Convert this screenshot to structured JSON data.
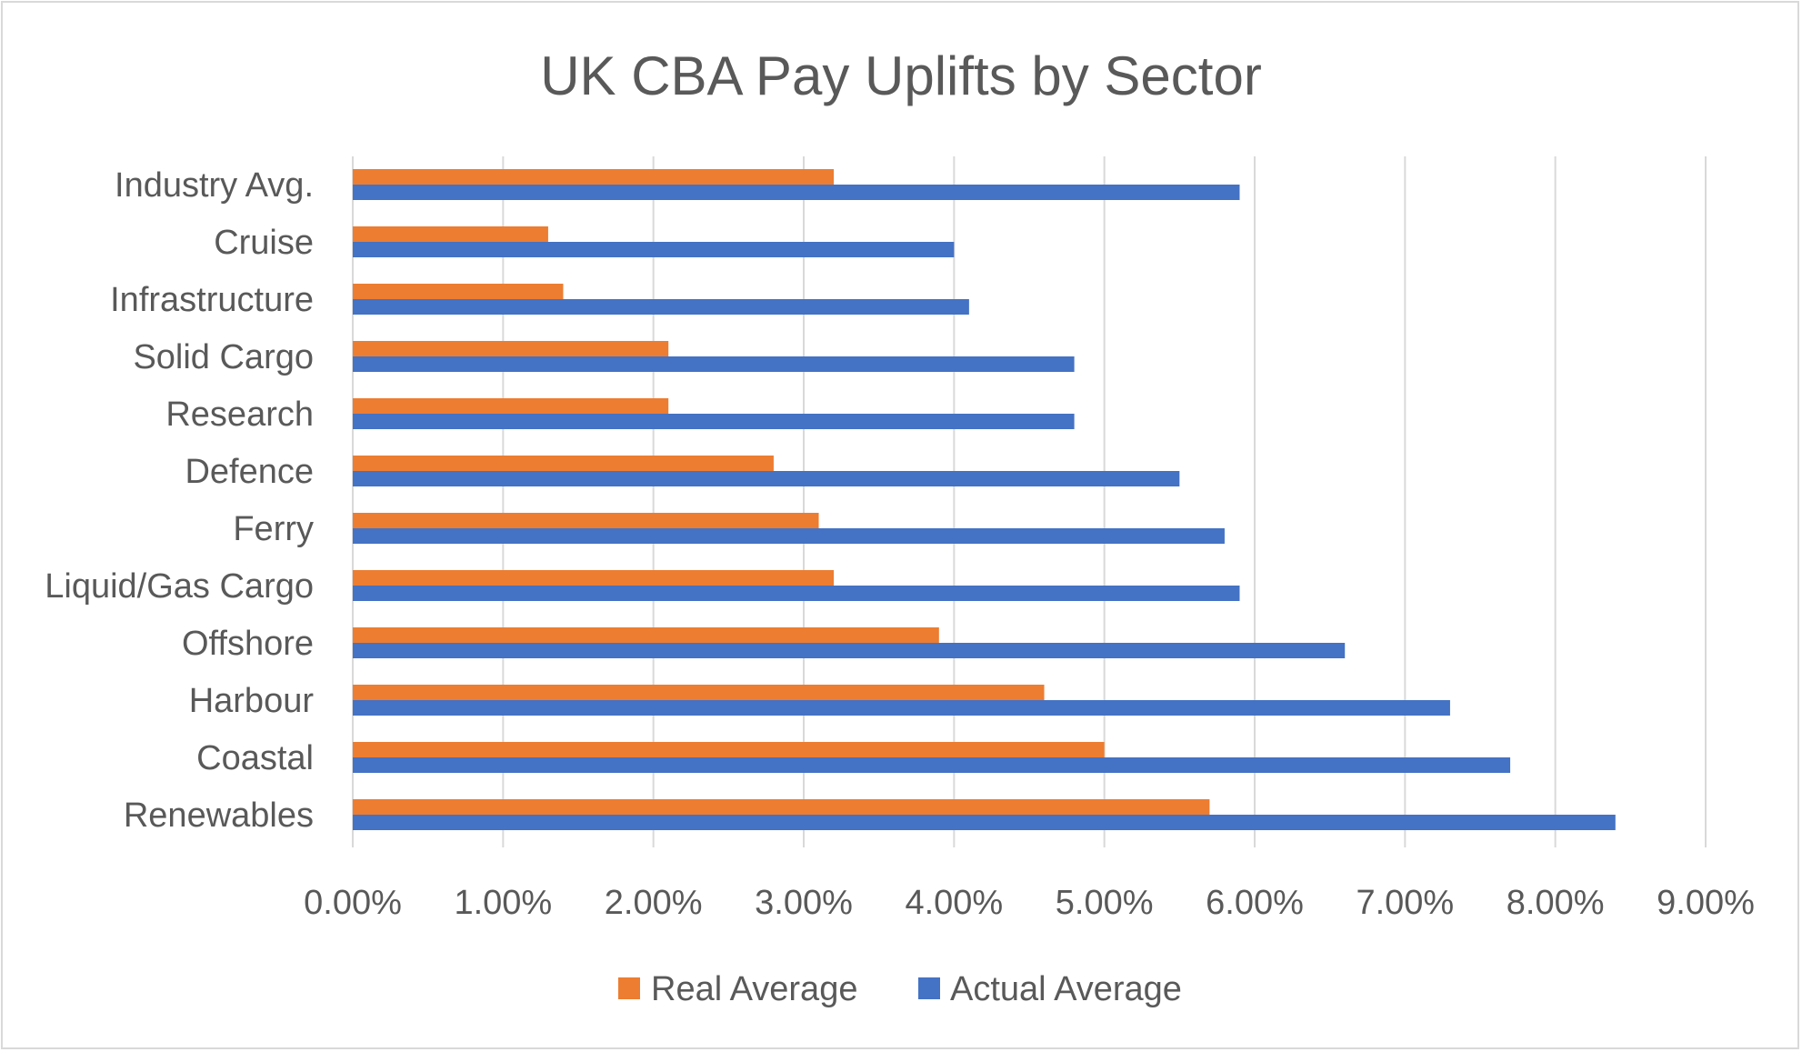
{
  "colors": {
    "real": "#ed7d31",
    "actual": "#4472c4",
    "grid": "#d9d9d9",
    "text": "#595959",
    "border": "#d9d9d9"
  },
  "chart_data": {
    "type": "bar",
    "orientation": "horizontal",
    "title": "UK CBA Pay Uplifts by Sector",
    "xlabel": "",
    "ylabel": "",
    "xlim": [
      0,
      0.09
    ],
    "grid": true,
    "legend_position": "bottom",
    "categories": [
      "Industry Avg.",
      "Cruise",
      "Infrastructure",
      "Solid Cargo",
      "Research",
      "Defence",
      "Ferry",
      "Liquid/Gas Cargo",
      "Offshore",
      "Harbour",
      "Coastal",
      "Renewables"
    ],
    "x_ticks": [
      "0.00%",
      "1.00%",
      "2.00%",
      "3.00%",
      "4.00%",
      "5.00%",
      "6.00%",
      "7.00%",
      "8.00%",
      "9.00%"
    ],
    "series": [
      {
        "name": "Real Average",
        "color": "#ed7d31",
        "values": [
          0.032,
          0.013,
          0.014,
          0.021,
          0.021,
          0.028,
          0.031,
          0.032,
          0.039,
          0.046,
          0.05,
          0.057
        ]
      },
      {
        "name": "Actual Average",
        "color": "#4472c4",
        "values": [
          0.059,
          0.04,
          0.041,
          0.048,
          0.048,
          0.055,
          0.058,
          0.059,
          0.066,
          0.073,
          0.077,
          0.084
        ]
      }
    ]
  }
}
